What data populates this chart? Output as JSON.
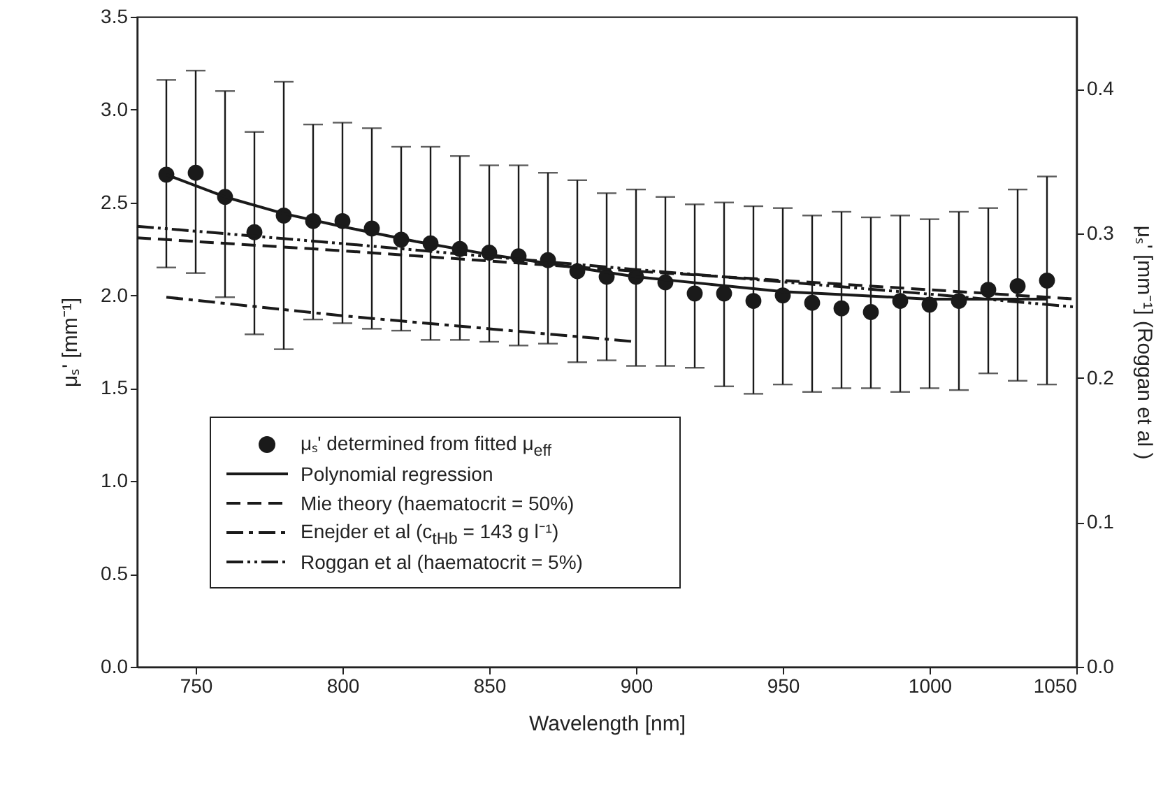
{
  "chart_data": {
    "type": "scatter",
    "xlabel": "Wavelength [nm]",
    "ylabel": "μₛ' [mm⁻¹]",
    "y2label": "μₛ' [mm⁻¹] (Roggan et al )",
    "xlim": [
      730,
      1050
    ],
    "xticks": [
      750,
      800,
      850,
      900,
      950,
      1000,
      1050
    ],
    "ylim": [
      0,
      3.5
    ],
    "yticks": [
      {
        "value": 0,
        "label": "0.0"
      },
      0.5,
      {
        "value": 1,
        "label": "1.0"
      },
      1.5,
      {
        "value": 2,
        "label": "2.0"
      },
      2.5,
      {
        "value": 3,
        "label": "3.0"
      },
      3.5
    ],
    "y2lim": [
      0,
      0.45
    ],
    "y2ticks": [
      {
        "value": 0,
        "label": "0.0"
      },
      0.1,
      0.2,
      0.3,
      0.4
    ],
    "legend": "bottom left",
    "grid": false,
    "series": [
      {
        "name": "μₛ' determined from fitted μ$_{eff}$",
        "marker": "circle",
        "color": "#1a1a1a",
        "x": [
          740,
          750,
          760,
          770,
          780,
          790,
          800,
          810,
          820,
          830,
          840,
          850,
          860,
          870,
          880,
          890,
          900,
          910,
          920,
          930,
          940,
          950,
          960,
          970,
          980,
          990,
          1000,
          1010,
          1020,
          1030,
          1040
        ],
        "values": [
          2.65,
          2.66,
          2.53,
          2.34,
          2.43,
          2.4,
          2.4,
          2.36,
          2.3,
          2.28,
          2.25,
          2.23,
          2.21,
          2.19,
          2.13,
          2.1,
          2.1,
          2.07,
          2.01,
          2.01,
          1.97,
          2.0,
          1.96,
          1.93,
          1.91,
          1.97,
          1.95,
          1.97,
          2.03,
          2.05,
          2.08
        ],
        "errors": [
          [
            2.15,
            3.16
          ],
          [
            2.12,
            3.21
          ],
          [
            1.99,
            3.1
          ],
          [
            1.79,
            2.88
          ],
          [
            1.71,
            3.15
          ],
          [
            1.87,
            2.92
          ],
          [
            1.85,
            2.93
          ],
          [
            1.82,
            2.9
          ],
          [
            1.81,
            2.8
          ],
          [
            1.76,
            2.8
          ],
          [
            1.76,
            2.75
          ],
          [
            1.75,
            2.7
          ],
          [
            1.73,
            2.7
          ],
          [
            1.74,
            2.66
          ],
          [
            1.64,
            2.62
          ],
          [
            1.65,
            2.55
          ],
          [
            1.62,
            2.57
          ],
          [
            1.62,
            2.53
          ],
          [
            1.61,
            2.49
          ],
          [
            1.51,
            2.5
          ],
          [
            1.47,
            2.48
          ],
          [
            1.52,
            2.47
          ],
          [
            1.48,
            2.43
          ],
          [
            1.5,
            2.45
          ],
          [
            1.5,
            2.42
          ],
          [
            1.48,
            2.43
          ],
          [
            1.5,
            2.41
          ],
          [
            1.49,
            2.45
          ],
          [
            1.58,
            2.47
          ],
          [
            1.54,
            2.57
          ],
          [
            1.52,
            2.64
          ]
        ]
      },
      {
        "name": "Polynomial regression",
        "type": "line",
        "line_style": "solid",
        "color": "#1a1a1a",
        "x": [
          740,
          760,
          780,
          800,
          825,
          850,
          875,
          900,
          925,
          950,
          975,
          1000,
          1020,
          1040
        ],
        "values": [
          2.65,
          2.53,
          2.44,
          2.37,
          2.29,
          2.22,
          2.16,
          2.1,
          2.06,
          2.02,
          2.0,
          1.98,
          1.98,
          1.98
        ]
      },
      {
        "name": "Mie theory (haematocrit = 50%)",
        "type": "line",
        "line_style": "dashed",
        "color": "#1a1a1a",
        "x": [
          730,
          800,
          900,
          1000,
          1050
        ],
        "values": [
          2.31,
          2.24,
          2.13,
          2.03,
          1.98
        ]
      },
      {
        "name": "Enejder et al  (c$_{tHb}$ = 143 g l⁻¹)",
        "type": "line",
        "line_style": "dashdot",
        "color": "#1a1a1a",
        "x": [
          740,
          800,
          850,
          900
        ],
        "values": [
          1.99,
          1.89,
          1.82,
          1.75
        ]
      },
      {
        "name": "Roggan et al  (haematocrit = 5%)",
        "type": "line",
        "line_style": "dashdotdot",
        "axis": "y2",
        "color": "#1a1a1a",
        "x": [
          730,
          800,
          900,
          1000,
          1050
        ],
        "values": [
          0.305,
          0.293,
          0.275,
          0.258,
          0.249
        ]
      }
    ]
  }
}
